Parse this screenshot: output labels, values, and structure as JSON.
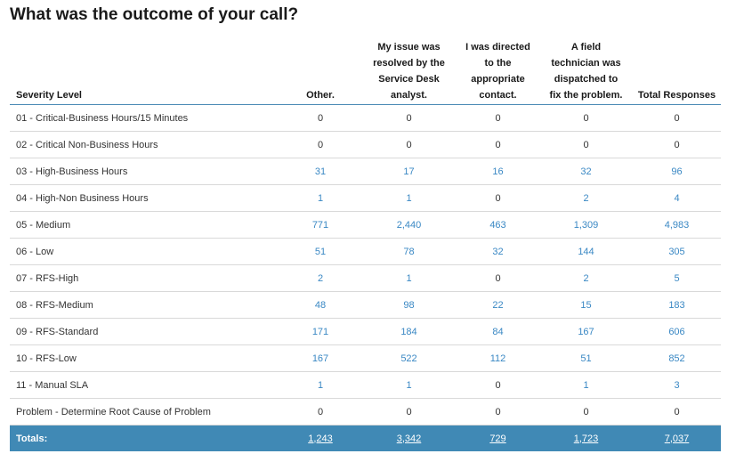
{
  "page": {
    "title": "What was the outcome of your call?"
  },
  "table": {
    "headers": [
      [
        "Severity Level"
      ],
      [
        "Other."
      ],
      [
        "My issue was",
        "resolved by the",
        "Service Desk",
        "analyst."
      ],
      [
        "I was directed",
        "to the",
        "appropriate",
        "contact."
      ],
      [
        "A field",
        "technician was",
        "dispatched to",
        "fix the problem."
      ],
      [
        "Total Responses"
      ]
    ],
    "rows": [
      {
        "label": "01 - Critical-Business Hours/15 Minutes",
        "values": [
          "0",
          "0",
          "0",
          "0",
          "0"
        ]
      },
      {
        "label": "02 - Critical Non-Business Hours",
        "values": [
          "0",
          "0",
          "0",
          "0",
          "0"
        ]
      },
      {
        "label": "03 - High-Business Hours",
        "values": [
          "31",
          "17",
          "16",
          "32",
          "96"
        ]
      },
      {
        "label": "04 - High-Non Business Hours",
        "values": [
          "1",
          "1",
          "0",
          "2",
          "4"
        ]
      },
      {
        "label": "05 - Medium",
        "values": [
          "771",
          "2,440",
          "463",
          "1,309",
          "4,983"
        ]
      },
      {
        "label": "06 - Low",
        "values": [
          "51",
          "78",
          "32",
          "144",
          "305"
        ]
      },
      {
        "label": "07 - RFS-High",
        "values": [
          "2",
          "1",
          "0",
          "2",
          "5"
        ]
      },
      {
        "label": "08 - RFS-Medium",
        "values": [
          "48",
          "98",
          "22",
          "15",
          "183"
        ]
      },
      {
        "label": "09 - RFS-Standard",
        "values": [
          "171",
          "184",
          "84",
          "167",
          "606"
        ]
      },
      {
        "label": "10 - RFS-Low",
        "values": [
          "167",
          "522",
          "112",
          "51",
          "852"
        ]
      },
      {
        "label": "11 - Manual SLA",
        "values": [
          "1",
          "1",
          "0",
          "1",
          "3"
        ]
      },
      {
        "label": "Problem - Determine Root Cause of Problem",
        "values": [
          "0",
          "0",
          "0",
          "0",
          "0"
        ]
      }
    ],
    "totals": {
      "label": "Totals:",
      "values": [
        "1,243",
        "3,342",
        "729",
        "1,723",
        "7,037"
      ]
    }
  },
  "colors": {
    "link": "#3a88c4",
    "totals_bg": "#4089b5",
    "header_rule": "#4a8ab5"
  }
}
